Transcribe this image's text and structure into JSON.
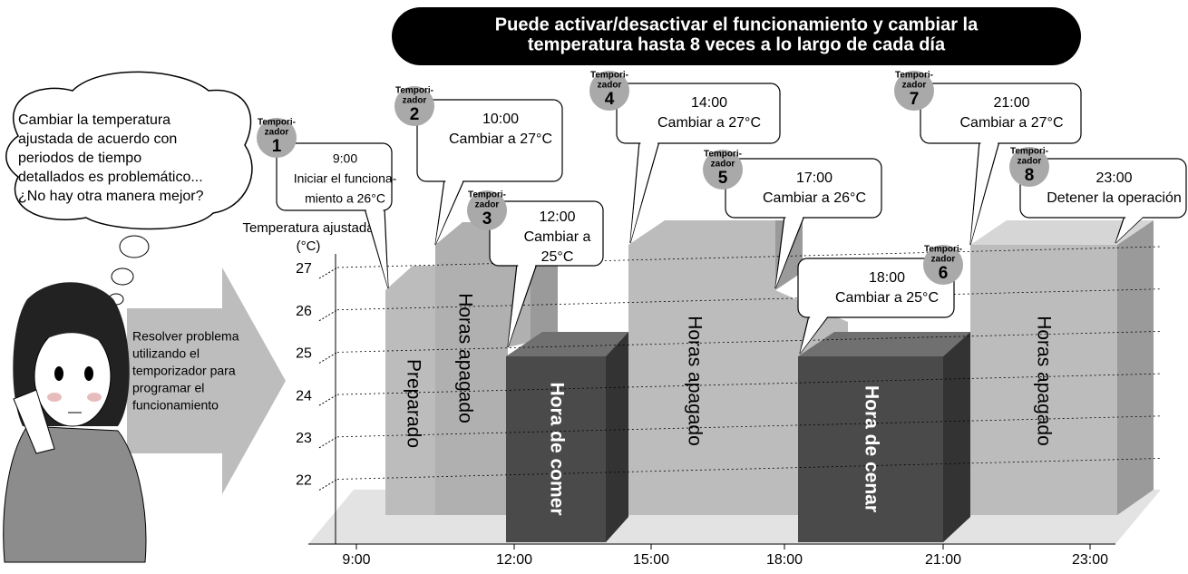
{
  "banner": {
    "lines": [
      "Puede activar/desactivar el funcionamiento y cambiar la",
      "temperatura hasta 8 veces a lo largo de cada día"
    ]
  },
  "thought": {
    "lines": [
      "Cambiar la temperatura",
      "ajustada de acuerdo con",
      "periodos de tiempo",
      "detallados es problemático...",
      "¿No hay otra manera mejor?"
    ]
  },
  "arrow": {
    "lines": [
      "Resolver problema",
      "utilizando el",
      "temporizador para",
      "programar el",
      "funcionamiento"
    ]
  },
  "axis": {
    "title": [
      "Temperatura ajustada",
      "(°C)"
    ],
    "yticks": [
      "27",
      "26",
      "25",
      "24",
      "23",
      "22"
    ],
    "xticks": [
      "9:00",
      "12:00",
      "15:00",
      "18:00",
      "21:00",
      "23:00"
    ]
  },
  "blocks": [
    "Preparado",
    "Horas apagado",
    "Hora de comer",
    "Horas apagado",
    "Hora de cenar",
    "Horas apagado"
  ],
  "timers": [
    {
      "label": [
        "Tempori-",
        "zador"
      ],
      "number": "1",
      "lines": [
        "9:00",
        "Iniciar el funciona-",
        "miento a 26°C"
      ]
    },
    {
      "label": [
        "Tempori-",
        "zador"
      ],
      "number": "2",
      "lines": [
        "10:00",
        "Cambiar a 27°C"
      ]
    },
    {
      "label": [
        "Tempori-",
        "zador"
      ],
      "number": "3",
      "lines": [
        "12:00",
        "Cambiar a",
        "25°C"
      ]
    },
    {
      "label": [
        "Tempori-",
        "zador"
      ],
      "number": "4",
      "lines": [
        "14:00",
        "Cambiar a 27°C"
      ]
    },
    {
      "label": [
        "Tempori-",
        "zador"
      ],
      "number": "5",
      "lines": [
        "17:00",
        "Cambiar a 26°C"
      ]
    },
    {
      "label": [
        "Tempori-",
        "zador"
      ],
      "number": "6",
      "lines": [
        "18:00",
        "Cambiar a 25°C"
      ]
    },
    {
      "label": [
        "Tempori-",
        "zador"
      ],
      "number": "7",
      "lines": [
        "21:00",
        "Cambiar a 27°C"
      ]
    },
    {
      "label": [
        "Tempori-",
        "zador"
      ],
      "number": "8",
      "lines": [
        "23:00",
        "Detener la operación"
      ]
    }
  ]
}
